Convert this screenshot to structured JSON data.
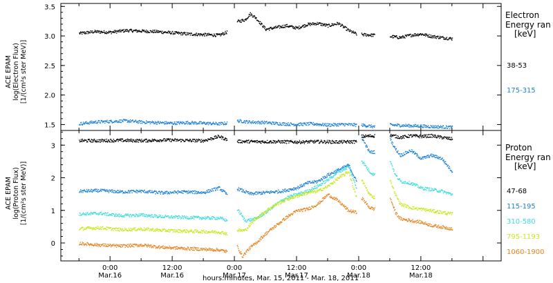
{
  "colors": {
    "black": "#000000",
    "blue": "#1a7fd6",
    "cyan": "#3fdcdc",
    "yellow": "#c8e81e",
    "orange": "#e8821e"
  },
  "chart_data": [
    {
      "type": "scatter",
      "panel": "electron",
      "ylabel_lines": [
        "ACE EPAM",
        "log(Electron Flux)",
        "[1/(cm²s ster MeV)]"
      ],
      "ylim": [
        1.4,
        3.55
      ],
      "yticks": [
        "1.5",
        "2.0",
        "2.5",
        "3.0",
        "3.5"
      ],
      "legend_title_lines": [
        "Electron",
        "Energy ran",
        "[keV]"
      ],
      "series": [
        {
          "name": "38-53",
          "color": "#000000",
          "segments": [
            {
              "x": [
                -6,
                -3,
                0,
                3,
                6,
                9,
                12,
                15,
                18,
                21,
                22.5
              ],
              "y": [
                3.05,
                3.08,
                3.07,
                3.1,
                3.09,
                3.08,
                3.06,
                3.04,
                3.03,
                3.02,
                3.07
              ]
            },
            {
              "x": [
                24.5,
                26,
                27,
                28,
                30,
                32,
                34,
                36,
                38,
                40,
                42,
                44,
                46,
                47.5
              ],
              "y": [
                3.25,
                3.28,
                3.38,
                3.32,
                3.12,
                3.15,
                3.18,
                3.14,
                3.2,
                3.22,
                3.18,
                3.22,
                3.1,
                3.04
              ]
            },
            {
              "x": [
                48.5,
                51
              ],
              "y": [
                3.03,
                3.02
              ]
            },
            {
              "x": [
                54,
                56,
                58,
                60,
                62,
                64,
                66
              ],
              "y": [
                3.0,
                2.98,
                3.02,
                3.04,
                3.0,
                2.98,
                2.96
              ]
            }
          ]
        },
        {
          "name": "175-315",
          "color": "#1a7fd6",
          "segments": [
            {
              "x": [
                -6,
                -3,
                0,
                3,
                6,
                9,
                12,
                15,
                18,
                21,
                22.5
              ],
              "y": [
                1.52,
                1.55,
                1.56,
                1.57,
                1.55,
                1.54,
                1.53,
                1.54,
                1.53,
                1.52,
                1.53
              ]
            },
            {
              "x": [
                24.5,
                27,
                30,
                33,
                36,
                39,
                42,
                45,
                47.5
              ],
              "y": [
                1.57,
                1.55,
                1.54,
                1.52,
                1.51,
                1.52,
                1.5,
                1.51,
                1.5
              ]
            },
            {
              "x": [
                48.5,
                51
              ],
              "y": [
                1.5,
                1.47
              ]
            },
            {
              "x": [
                54,
                57,
                60,
                63,
                66
              ],
              "y": [
                1.5,
                1.49,
                1.48,
                1.47,
                1.46
              ]
            }
          ]
        }
      ]
    },
    {
      "type": "scatter",
      "panel": "proton",
      "ylabel_lines": [
        "ACE EPAM",
        "log(Proton Flux)",
        "[1/(cm²s ster MeV)]"
      ],
      "ylim": [
        -0.55,
        3.45
      ],
      "yticks": [
        "0",
        "1",
        "2",
        "3"
      ],
      "legend_title_lines": [
        "Proton",
        "Energy ran",
        "[keV]"
      ],
      "xticks": [
        {
          "x": 0,
          "lines": [
            "0:00",
            "Mar.16"
          ]
        },
        {
          "x": 12,
          "lines": [
            "12:00",
            "Mar.16"
          ]
        },
        {
          "x": 24,
          "lines": [
            "0:00",
            "Mar.17"
          ]
        },
        {
          "x": 36,
          "lines": [
            "12:00",
            "Mar.17"
          ]
        },
        {
          "x": 48,
          "lines": [
            "0:00",
            "Mar.18"
          ]
        },
        {
          "x": 60,
          "lines": [
            "12:00",
            "Mar.18"
          ]
        }
      ],
      "xlabel": "hours:minutes, Mar. 15, 2011 - Mar. 18, 2011",
      "series": [
        {
          "name": "47-68",
          "color": "#000000",
          "segments": [
            {
              "x": [
                -6,
                -2,
                2,
                6,
                10,
                14,
                18,
                21,
                22.5
              ],
              "y": [
                3.15,
                3.15,
                3.16,
                3.15,
                3.17,
                3.16,
                3.15,
                3.28,
                3.18
              ]
            },
            {
              "x": [
                24.5,
                28,
                32,
                36,
                40,
                44,
                47.5
              ],
              "y": [
                3.13,
                3.12,
                3.12,
                3.11,
                3.12,
                3.11,
                3.12
              ]
            },
            {
              "x": [
                48.5,
                51
              ],
              "y": [
                3.28,
                3.3
              ]
            },
            {
              "x": [
                54,
                56,
                58,
                60,
                62,
                64,
                66
              ],
              "y": [
                3.32,
                3.25,
                3.3,
                3.28,
                3.3,
                3.25,
                3.2
              ]
            }
          ]
        },
        {
          "name": "115-195",
          "color": "#1a7fd6",
          "segments": [
            {
              "x": [
                -6,
                -2,
                2,
                6,
                10,
                14,
                18,
                21,
                22.5
              ],
              "y": [
                1.6,
                1.62,
                1.58,
                1.6,
                1.55,
                1.58,
                1.56,
                1.7,
                1.5
              ]
            },
            {
              "x": [
                24.5,
                27,
                30,
                33,
                36,
                38,
                40,
                42,
                44,
                46,
                47.5
              ],
              "y": [
                1.68,
                1.52,
                1.56,
                1.6,
                1.7,
                1.85,
                1.9,
                2.1,
                2.25,
                2.4,
                1.9
              ]
            },
            {
              "x": [
                48.5,
                50,
                51
              ],
              "y": [
                3.25,
                2.8,
                2.8
              ]
            },
            {
              "x": [
                54,
                55,
                56,
                58,
                60,
                62,
                64,
                66
              ],
              "y": [
                3.2,
                2.9,
                2.7,
                2.85,
                2.6,
                2.7,
                2.6,
                2.2
              ]
            }
          ]
        },
        {
          "name": "310-580",
          "color": "#3fdcdc",
          "segments": [
            {
              "x": [
                -6,
                -2,
                2,
                6,
                10,
                14,
                18,
                21,
                22.5
              ],
              "y": [
                0.9,
                0.92,
                0.85,
                0.87,
                0.82,
                0.8,
                0.78,
                0.78,
                0.7
              ]
            },
            {
              "x": [
                24.5,
                26,
                28,
                30,
                32,
                34,
                36,
                38,
                40,
                42,
                44,
                46,
                47.5
              ],
              "y": [
                1.05,
                0.7,
                0.75,
                0.95,
                1.2,
                1.4,
                1.5,
                1.6,
                1.75,
                1.95,
                2.2,
                2.35,
                1.7
              ]
            },
            {
              "x": [
                48.5,
                50,
                51
              ],
              "y": [
                2.55,
                2.2,
                2.1
              ]
            },
            {
              "x": [
                54,
                55,
                56,
                58,
                60,
                62,
                64,
                66
              ],
              "y": [
                2.55,
                2.1,
                1.9,
                1.85,
                1.7,
                1.65,
                1.6,
                1.5
              ]
            }
          ]
        },
        {
          "name": "795-1193",
          "color": "#c8e81e",
          "segments": [
            {
              "x": [
                -6,
                -2,
                2,
                6,
                10,
                14,
                18,
                21,
                22.5
              ],
              "y": [
                0.45,
                0.48,
                0.42,
                0.44,
                0.4,
                0.38,
                0.36,
                0.35,
                0.3
              ]
            },
            {
              "x": [
                24.5,
                26,
                28,
                30,
                32,
                34,
                36,
                38,
                40,
                42,
                44,
                46,
                47.5
              ],
              "y": [
                0.4,
                0.4,
                0.75,
                1.0,
                1.2,
                1.35,
                1.45,
                1.55,
                1.6,
                1.75,
                2.0,
                2.2,
                1.4
              ]
            },
            {
              "x": [
                48.5,
                50,
                51
              ],
              "y": [
                1.95,
                1.5,
                1.4
              ]
            },
            {
              "x": [
                54,
                55,
                56,
                58,
                60,
                62,
                64,
                66
              ],
              "y": [
                1.95,
                1.5,
                1.2,
                1.1,
                1.05,
                1.0,
                0.95,
                0.9
              ]
            }
          ]
        },
        {
          "name": "1060-1900",
          "color": "#e8821e",
          "segments": [
            {
              "x": [
                -6,
                -2,
                2,
                6,
                10,
                14,
                18,
                21,
                22.5
              ],
              "y": [
                0.0,
                -0.05,
                -0.08,
                -0.05,
                -0.12,
                -0.15,
                -0.18,
                -0.2,
                -0.25
              ]
            },
            {
              "x": [
                24.5,
                25.5,
                26.5,
                28,
                30,
                32,
                34,
                36,
                38,
                40,
                42,
                44,
                46,
                47.5
              ],
              "y": [
                -0.1,
                -0.4,
                -0.2,
                0.0,
                0.3,
                0.55,
                0.8,
                1.0,
                1.05,
                1.2,
                1.5,
                1.3,
                1.0,
                0.95
              ]
            },
            {
              "x": [
                48.5,
                50,
                51
              ],
              "y": [
                1.4,
                1.1,
                1.05
              ]
            },
            {
              "x": [
                54,
                55,
                56,
                58,
                60,
                62,
                64,
                66
              ],
              "y": [
                1.4,
                0.95,
                0.75,
                0.7,
                0.65,
                0.55,
                0.5,
                0.45
              ]
            }
          ]
        }
      ]
    }
  ]
}
